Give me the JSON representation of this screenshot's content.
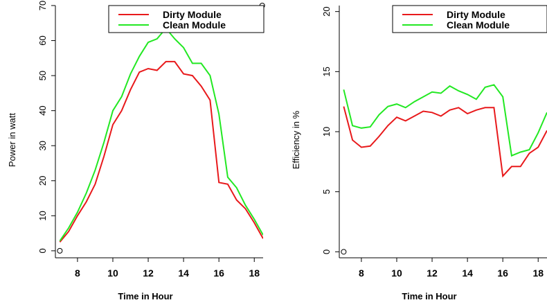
{
  "colors": {
    "dirty": "#e8191b",
    "clean": "#22e822",
    "axis": "#000000"
  },
  "chart_data": [
    {
      "type": "line",
      "xlabel": "Time in Hour",
      "ylabel": "Power in watt",
      "xlim": [
        6.75,
        18.5
      ],
      "ylim": [
        -2,
        70
      ],
      "x_ticks": [
        8,
        10,
        12,
        14,
        16,
        18
      ],
      "y_ticks": [
        0,
        10,
        20,
        30,
        40,
        50,
        60,
        70
      ],
      "legend": {
        "position": "top-right",
        "entries": [
          "Dirty Module",
          "Clean Module"
        ]
      },
      "x": [
        7,
        7.5,
        8,
        8.5,
        9,
        9.5,
        10,
        10.5,
        11,
        11.5,
        12,
        12.5,
        13,
        13.5,
        14,
        14.5,
        15,
        15.5,
        16,
        16.5,
        17,
        17.5,
        18,
        18.5
      ],
      "series": [
        {
          "name": "Dirty Module",
          "color": "#e8191b",
          "values": [
            2.5,
            5.5,
            10,
            14,
            19,
            27,
            36,
            40,
            46,
            51,
            52,
            51.5,
            54,
            54,
            50.5,
            50,
            47,
            43,
            19.5,
            19,
            14.5,
            12,
            8,
            3.5
          ]
        },
        {
          "name": "Clean Module",
          "color": "#22e822",
          "values": [
            2.8,
            6.5,
            11,
            16.5,
            23,
            31,
            40,
            44,
            50.5,
            55.5,
            59.5,
            60.5,
            63.5,
            60.5,
            58,
            53.5,
            53.5,
            50,
            39,
            21,
            18,
            13,
            9,
            4.5
          ]
        }
      ],
      "markers": [
        {
          "x": 7,
          "y": 0
        },
        {
          "x": 18.45,
          "y": 70
        }
      ]
    },
    {
      "type": "line",
      "xlabel": "Time in Hour",
      "ylabel": "Efficiency in %",
      "xlim": [
        6.75,
        18.5
      ],
      "ylim": [
        -0.5,
        20.5
      ],
      "x_ticks": [
        8,
        10,
        12,
        14,
        16,
        18
      ],
      "y_ticks": [
        0,
        5,
        10,
        15,
        20
      ],
      "legend": {
        "position": "top-right",
        "entries": [
          "Dirty Module",
          "Clean Module"
        ]
      },
      "x": [
        7,
        7.5,
        8,
        8.5,
        9,
        9.5,
        10,
        10.5,
        11,
        11.5,
        12,
        12.5,
        13,
        13.5,
        14,
        14.5,
        15,
        15.5,
        16,
        16.5,
        17,
        17.5,
        18,
        18.5
      ],
      "series": [
        {
          "name": "Dirty Module",
          "color": "#e8191b",
          "values": [
            12.1,
            9.3,
            8.7,
            8.8,
            9.6,
            10.5,
            11.2,
            10.9,
            11.3,
            11.7,
            11.6,
            11.3,
            11.8,
            12.0,
            11.5,
            11.8,
            12.0,
            12.0,
            6.3,
            7.1,
            7.1,
            8.2,
            8.7,
            10.1
          ]
        },
        {
          "name": "Clean Module",
          "color": "#22e822",
          "values": [
            13.5,
            10.5,
            10.3,
            10.4,
            11.4,
            12.1,
            12.3,
            12.0,
            12.5,
            12.9,
            13.3,
            13.2,
            13.8,
            13.4,
            13.1,
            12.7,
            13.7,
            13.9,
            12.9,
            8.0,
            8.3,
            8.5,
            9.9,
            11.6
          ]
        }
      ],
      "markers": [
        {
          "x": 7,
          "y": 0
        },
        {
          "x": 18.45,
          "y": 20
        }
      ]
    }
  ]
}
